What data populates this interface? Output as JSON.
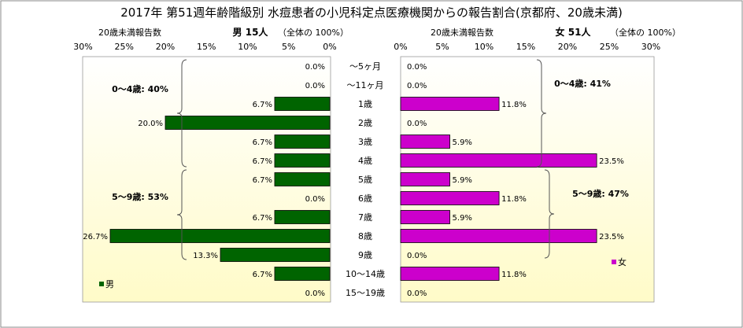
{
  "chart_data": {
    "type": "bar",
    "title": "2017年 第51週年齢階級別 水痘患者の小児科定点医療機関からの報告割合(京都府、20歳未満)",
    "categories": [
      "〜5ヶ月",
      "〜11ヶ月",
      "1歳",
      "2歳",
      "3歳",
      "4歳",
      "5歳",
      "6歳",
      "7歳",
      "8歳",
      "9歳",
      "10〜14歳",
      "15〜19歳"
    ],
    "axis_ticks": [
      "0%",
      "5%",
      "10%",
      "15%",
      "20%",
      "25%",
      "30%"
    ],
    "xlim": [
      0,
      30
    ],
    "left_panel": {
      "axis_label": "20歳未満報告数",
      "header": "男 15人",
      "total": "（全体の 100%）",
      "legend": "男",
      "color": "#006400",
      "values": [
        0.0,
        0.0,
        6.7,
        20.0,
        6.7,
        6.7,
        6.7,
        0.0,
        6.7,
        26.7,
        13.3,
        6.7,
        0.0
      ],
      "labels": [
        "0.0%",
        "0.0%",
        "6.7%",
        "20.0%",
        "6.7%",
        "6.7%",
        "6.7%",
        "0.0%",
        "6.7%",
        "26.7%",
        "13.3%",
        "6.7%",
        "0.0%"
      ],
      "groups": [
        "0〜4歳: 40%",
        "5〜9歳: 53%"
      ]
    },
    "right_panel": {
      "axis_label": "20歳未満報告数",
      "header": "女 51人",
      "total": "（全体の 100%）",
      "legend": "女",
      "color": "#cc00cc",
      "values": [
        0.0,
        0.0,
        11.8,
        0.0,
        5.9,
        23.5,
        5.9,
        11.8,
        5.9,
        23.5,
        0.0,
        11.8,
        0.0
      ],
      "labels": [
        "0.0%",
        "0.0%",
        "11.8%",
        "0.0%",
        "5.9%",
        "23.5%",
        "5.9%",
        "11.8%",
        "5.9%",
        "23.5%",
        "0.0%",
        "11.8%",
        "0.0%"
      ],
      "groups": [
        "0〜4歳: 41%",
        "5〜9歳: 47%"
      ]
    },
    "grid": false,
    "plot_background": "#fffde0"
  }
}
